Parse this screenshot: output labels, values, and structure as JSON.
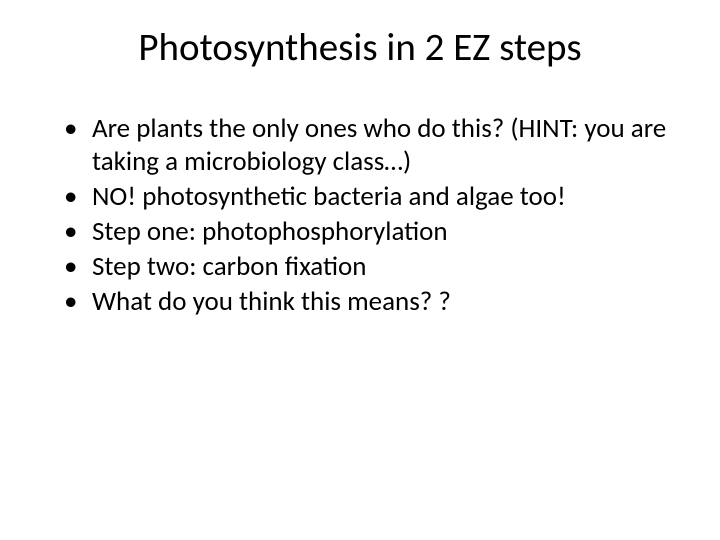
{
  "slide": {
    "title": "Photosynthesis in 2 EZ steps",
    "bullets": [
      "Are plants the only ones who do this? (HINT: you are taking a microbiology class…)",
      "NO! photosynthetic bacteria and algae too!",
      "Step one: photophosphorylation",
      "Step two: carbon fixation",
      "What do you think this means? ?"
    ],
    "title_fontsize": 39,
    "body_fontsize": 27,
    "text_color": "#000000",
    "background_color": "#ffffff"
  }
}
